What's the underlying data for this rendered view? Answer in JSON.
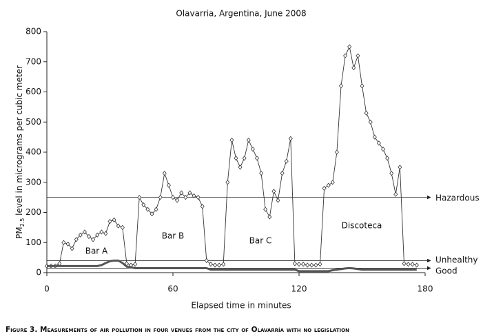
{
  "chart_data": {
    "type": "line",
    "title": "Olavarria, Argentina, June 2008",
    "y_label_parts": [
      "PM",
      "2.5",
      " level in micrograms per cubic meter"
    ],
    "x_label": "Elapsed time in minutes",
    "caption": "Figure 3. Measurements of air pollution in four venues from the city of Olavarría with no legislation",
    "xlim": [
      0,
      180
    ],
    "xticks": [
      0,
      60,
      120,
      180
    ],
    "ylim": [
      0,
      800
    ],
    "yticks": [
      0,
      100,
      200,
      300,
      400,
      500,
      600,
      700,
      800
    ],
    "grid": false,
    "x": [
      0,
      2,
      4,
      6,
      8,
      10,
      12,
      14,
      16,
      18,
      20,
      22,
      24,
      26,
      28,
      30,
      32,
      34,
      36,
      38,
      40,
      42,
      44,
      46,
      48,
      50,
      52,
      54,
      56,
      58,
      60,
      62,
      64,
      66,
      68,
      70,
      72,
      74,
      76,
      78,
      80,
      82,
      84,
      86,
      88,
      90,
      92,
      94,
      96,
      98,
      100,
      102,
      104,
      106,
      108,
      110,
      112,
      114,
      116,
      118,
      120,
      122,
      124,
      126,
      128,
      130,
      132,
      134,
      136,
      138,
      140,
      142,
      144,
      146,
      148,
      150,
      152,
      154,
      156,
      158,
      160,
      162,
      164,
      166,
      168,
      170,
      172,
      174,
      176
    ],
    "series": [
      {
        "color": "#333333",
        "marker": "diamond",
        "values": [
          22,
          22,
          22,
          30,
          100,
          95,
          80,
          110,
          125,
          135,
          120,
          110,
          125,
          135,
          130,
          170,
          175,
          155,
          150,
          30,
          25,
          28,
          250,
          225,
          210,
          195,
          210,
          250,
          330,
          290,
          250,
          240,
          265,
          250,
          265,
          255,
          250,
          220,
          40,
          28,
          25,
          25,
          28,
          300,
          440,
          380,
          350,
          380,
          440,
          410,
          380,
          330,
          210,
          185,
          270,
          240,
          330,
          370,
          445,
          30,
          28,
          28,
          25,
          25,
          25,
          28,
          280,
          290,
          300,
          400,
          620,
          720,
          750,
          680,
          720,
          620,
          530,
          500,
          450,
          430,
          410,
          380,
          330,
          260,
          350,
          30,
          28,
          28,
          25
        ]
      },
      {
        "color": "#555555",
        "marker": "none",
        "values": [
          22,
          22,
          22,
          22,
          22,
          22,
          22,
          22,
          22,
          22,
          22,
          22,
          22,
          25,
          32,
          38,
          40,
          40,
          32,
          20,
          18,
          15,
          15,
          15,
          15,
          15,
          15,
          15,
          15,
          15,
          15,
          15,
          15,
          15,
          15,
          15,
          15,
          15,
          15,
          10,
          10,
          10,
          10,
          10,
          10,
          10,
          10,
          10,
          10,
          10,
          10,
          10,
          10,
          10,
          10,
          10,
          10,
          10,
          10,
          10,
          5,
          5,
          5,
          5,
          5,
          5,
          5,
          5,
          8,
          10,
          12,
          14,
          15,
          14,
          12,
          10,
          10,
          10,
          10,
          10,
          10,
          10,
          10,
          10,
          10,
          10,
          10,
          10,
          10
        ]
      }
    ],
    "reference_lines": [
      {
        "value": 250,
        "label": "Hazardous"
      },
      {
        "value": 40,
        "label": "Unhealthy"
      },
      {
        "value": 15,
        "label": "Good"
      }
    ],
    "annotations": [
      "Bar A",
      "Bar B",
      "Bar C",
      "Discoteca"
    ]
  }
}
